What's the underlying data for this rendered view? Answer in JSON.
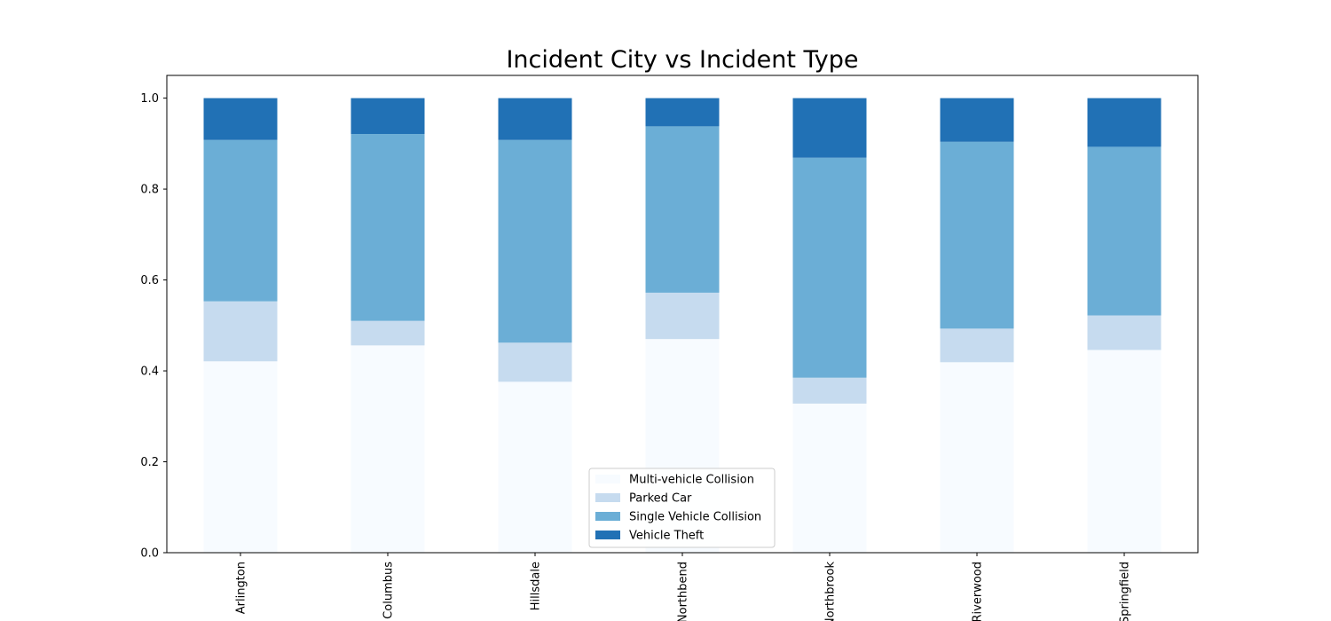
{
  "chart_data": {
    "type": "bar",
    "stacked": true,
    "title": "Incident City vs Incident Type",
    "xlabel": "",
    "ylabel": "",
    "ylim": [
      0,
      1.05
    ],
    "yticks": [
      "0.0",
      "0.2",
      "0.4",
      "0.6",
      "0.8",
      "1.0"
    ],
    "ytick_values": [
      0,
      0.2,
      0.4,
      0.6,
      0.8,
      1.0
    ],
    "categories": [
      "Arlington",
      "Columbus",
      "Hillsdale",
      "Northbend",
      "Northbrook",
      "Riverwood",
      "Springfield"
    ],
    "legend_position": "bottom-center",
    "grid": false,
    "series": [
      {
        "name": "Multi-vehicle Collision",
        "color": "#f7fbff",
        "values": [
          0.421,
          0.456,
          0.376,
          0.47,
          0.328,
          0.419,
          0.446
        ]
      },
      {
        "name": "Parked Car",
        "color": "#c6dbef",
        "values": [
          0.132,
          0.054,
          0.086,
          0.102,
          0.057,
          0.074,
          0.076
        ]
      },
      {
        "name": "Single Vehicle Collision",
        "color": "#6baed6",
        "values": [
          0.355,
          0.411,
          0.446,
          0.366,
          0.484,
          0.411,
          0.371
        ]
      },
      {
        "name": "Vehicle Theft",
        "color": "#2171b5",
        "values": [
          0.092,
          0.079,
          0.092,
          0.062,
          0.131,
          0.096,
          0.107
        ]
      }
    ]
  }
}
